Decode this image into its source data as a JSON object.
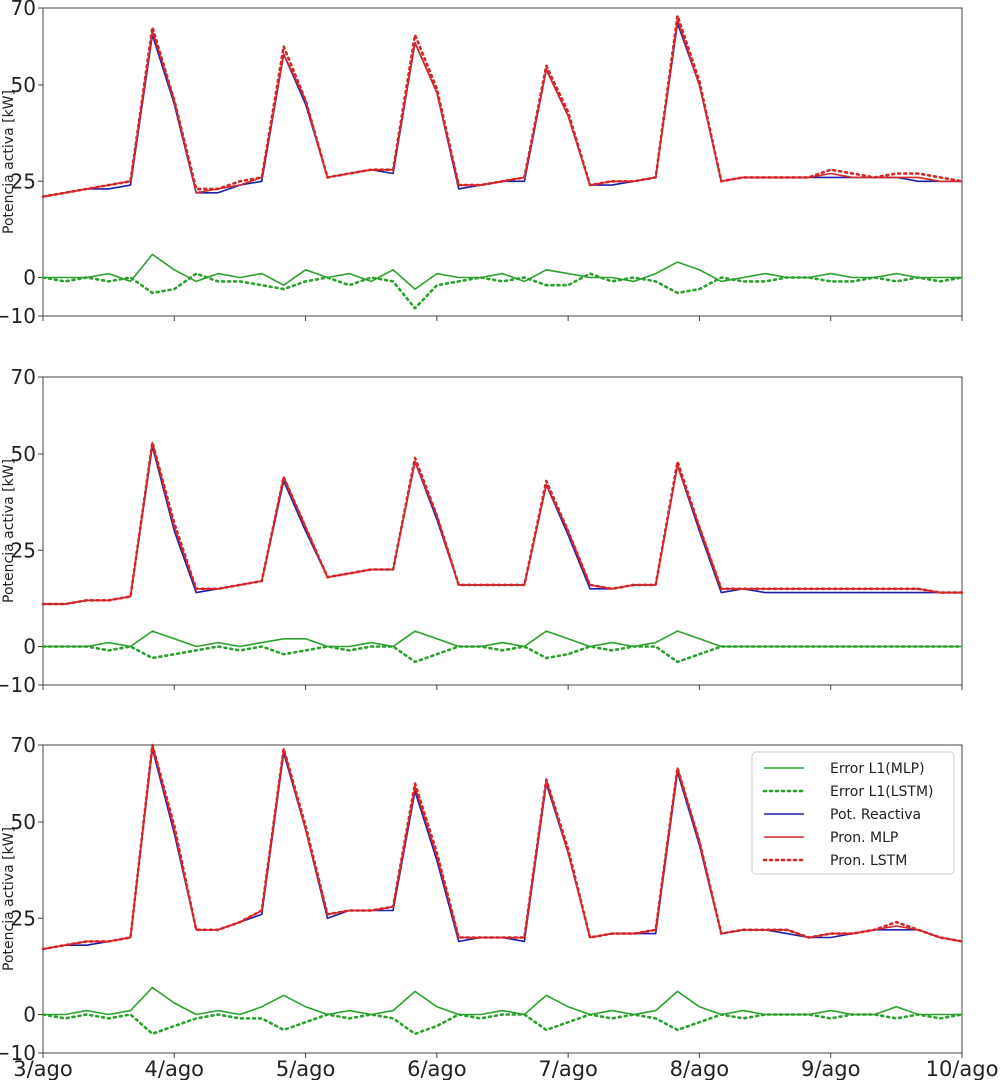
{
  "chart_data": [
    {
      "type": "line",
      "ylabel": "Potencia activa [kW]",
      "ylim": [
        -10,
        70
      ],
      "yticks": [
        -10,
        0,
        25,
        50,
        70
      ],
      "x_start": "3/ago",
      "x_end": "10/ago",
      "series": [
        {
          "name": "Pot. Reactiva",
          "color": "#1f1fa8",
          "style": "solid",
          "values": [
            21,
            22,
            23,
            23,
            24,
            63,
            45,
            22,
            22,
            24,
            25,
            58,
            45,
            26,
            27,
            28,
            27,
            61,
            48,
            23,
            24,
            25,
            25,
            54,
            42,
            24,
            24,
            25,
            26,
            66,
            50,
            25,
            26,
            26,
            26,
            26,
            26,
            26,
            26,
            26,
            25,
            25,
            25
          ]
        },
        {
          "name": "Pron. MLP",
          "color": "#d62728",
          "style": "solid",
          "values": [
            21,
            22,
            23,
            24,
            25,
            64,
            46,
            22,
            23,
            24,
            26,
            58,
            46,
            26,
            27,
            28,
            28,
            61,
            48,
            24,
            24,
            25,
            26,
            54,
            42,
            24,
            25,
            25,
            26,
            67,
            50,
            25,
            26,
            26,
            26,
            26,
            27,
            26,
            26,
            26,
            26,
            25,
            25
          ]
        },
        {
          "name": "Pron. LSTM",
          "color": "#d62728",
          "style": "dotted",
          "values": [
            21,
            22,
            23,
            24,
            25,
            65,
            46,
            23,
            23,
            25,
            26,
            60,
            46,
            26,
            27,
            28,
            28,
            63,
            49,
            24,
            24,
            25,
            26,
            55,
            43,
            24,
            25,
            25,
            26,
            68,
            51,
            25,
            26,
            26,
            26,
            26,
            28,
            27,
            26,
            27,
            27,
            26,
            25
          ]
        },
        {
          "name": "Error L1(MLP)",
          "color": "#2ca02c",
          "style": "solid",
          "values": [
            0,
            0,
            0,
            1,
            -1,
            6,
            2,
            -1,
            1,
            0,
            1,
            -2,
            2,
            0,
            1,
            -1,
            2,
            -3,
            1,
            0,
            0,
            1,
            -1,
            2,
            1,
            0,
            0,
            -1,
            1,
            4,
            2,
            -1,
            0,
            1,
            0,
            0,
            1,
            0,
            0,
            1,
            0,
            0,
            0
          ]
        },
        {
          "name": "Error L1(LSTM)",
          "color": "#2ca02c",
          "style": "dotted",
          "values": [
            0,
            -1,
            0,
            -1,
            0,
            -4,
            -3,
            1,
            -1,
            -1,
            -2,
            -3,
            -1,
            0,
            -2,
            0,
            -1,
            -8,
            -2,
            -1,
            0,
            -1,
            0,
            -2,
            -2,
            1,
            -1,
            0,
            -1,
            -4,
            -3,
            0,
            -1,
            -1,
            0,
            0,
            -1,
            -1,
            0,
            -1,
            0,
            -1,
            0
          ]
        }
      ]
    },
    {
      "type": "line",
      "ylabel": "Potencia activa [kW]",
      "ylim": [
        -10,
        70
      ],
      "yticks": [
        -10,
        0,
        25,
        50,
        70
      ],
      "x_start": "3/ago",
      "x_end": "10/ago",
      "series": [
        {
          "name": "Pot. Reactiva",
          "color": "#1f1fa8",
          "style": "solid",
          "values": [
            11,
            11,
            12,
            12,
            13,
            52,
            30,
            14,
            15,
            16,
            17,
            43,
            30,
            18,
            19,
            20,
            20,
            48,
            33,
            16,
            16,
            16,
            16,
            42,
            29,
            15,
            15,
            16,
            16,
            47,
            30,
            14,
            15,
            14,
            14,
            14,
            14,
            14,
            14,
            14,
            14,
            14,
            14
          ]
        },
        {
          "name": "Pron. MLP",
          "color": "#d62728",
          "style": "solid",
          "values": [
            11,
            11,
            12,
            12,
            13,
            53,
            31,
            15,
            15,
            16,
            17,
            44,
            31,
            18,
            19,
            20,
            20,
            48,
            34,
            16,
            16,
            16,
            16,
            42,
            30,
            16,
            15,
            16,
            16,
            47,
            31,
            15,
            15,
            15,
            15,
            15,
            15,
            15,
            15,
            15,
            15,
            14,
            14
          ]
        },
        {
          "name": "Pron. LSTM",
          "color": "#d62728",
          "style": "dotted",
          "values": [
            11,
            11,
            12,
            12,
            13,
            53,
            32,
            15,
            15,
            16,
            17,
            44,
            31,
            18,
            19,
            20,
            20,
            49,
            34,
            16,
            16,
            16,
            16,
            43,
            30,
            16,
            15,
            16,
            16,
            48,
            31,
            15,
            15,
            15,
            15,
            15,
            15,
            15,
            15,
            15,
            15,
            14,
            14
          ]
        },
        {
          "name": "Error L1(MLP)",
          "color": "#2ca02c",
          "style": "solid",
          "values": [
            0,
            0,
            0,
            1,
            0,
            4,
            2,
            0,
            1,
            0,
            1,
            2,
            2,
            0,
            0,
            1,
            0,
            4,
            2,
            0,
            0,
            1,
            0,
            4,
            2,
            0,
            1,
            0,
            1,
            4,
            2,
            0,
            0,
            0,
            0,
            0,
            0,
            0,
            0,
            0,
            0,
            0,
            0
          ]
        },
        {
          "name": "Error L1(LSTM)",
          "color": "#2ca02c",
          "style": "dotted",
          "values": [
            0,
            0,
            0,
            -1,
            0,
            -3,
            -2,
            -1,
            0,
            -1,
            0,
            -2,
            -1,
            0,
            -1,
            0,
            0,
            -4,
            -2,
            0,
            0,
            -1,
            0,
            -3,
            -2,
            0,
            -1,
            0,
            0,
            -4,
            -2,
            0,
            0,
            0,
            0,
            0,
            0,
            0,
            0,
            0,
            0,
            0,
            0
          ]
        }
      ]
    },
    {
      "type": "line",
      "ylabel": "Potencia activa [kW]",
      "ylim": [
        -10,
        70
      ],
      "yticks": [
        -10,
        0,
        25,
        50,
        70
      ],
      "x_start": "3/ago",
      "x_end": "10/ago",
      "xticks": [
        "3/ago",
        "4/ago",
        "5/ago",
        "6/ago",
        "7/ago",
        "8/ago",
        "9/ago",
        "10/ago"
      ],
      "legend": {
        "position": "top-right",
        "entries": [
          "Error L1(MLP)",
          "Error L1(LSTM)",
          "Pot. Reactiva",
          "Pron. MLP",
          "Pron. LSTM"
        ]
      },
      "series": [
        {
          "name": "Pot. Reactiva",
          "color": "#1f1fa8",
          "style": "solid",
          "values": [
            17,
            18,
            18,
            19,
            20,
            69,
            47,
            22,
            22,
            24,
            26,
            68,
            48,
            25,
            27,
            27,
            27,
            58,
            40,
            19,
            20,
            20,
            19,
            60,
            42,
            20,
            21,
            21,
            21,
            63,
            44,
            21,
            22,
            22,
            21,
            20,
            20,
            21,
            22,
            22,
            22,
            20,
            19
          ]
        },
        {
          "name": "Pron. MLP",
          "color": "#d62728",
          "style": "solid",
          "values": [
            17,
            18,
            19,
            19,
            20,
            70,
            48,
            22,
            22,
            24,
            27,
            69,
            48,
            26,
            27,
            27,
            28,
            59,
            41,
            20,
            20,
            20,
            20,
            61,
            42,
            20,
            21,
            21,
            22,
            64,
            45,
            21,
            22,
            22,
            22,
            20,
            21,
            21,
            22,
            23,
            22,
            20,
            19
          ]
        },
        {
          "name": "Pron. LSTM",
          "color": "#d62728",
          "style": "dotted",
          "values": [
            17,
            18,
            19,
            19,
            20,
            70,
            49,
            22,
            22,
            24,
            27,
            69,
            49,
            26,
            27,
            27,
            28,
            60,
            42,
            20,
            20,
            20,
            20,
            61,
            43,
            20,
            21,
            21,
            22,
            64,
            45,
            21,
            22,
            22,
            22,
            20,
            21,
            21,
            22,
            24,
            22,
            20,
            19
          ]
        },
        {
          "name": "Error L1(MLP)",
          "color": "#2ca02c",
          "style": "solid",
          "values": [
            0,
            0,
            1,
            0,
            1,
            7,
            3,
            0,
            1,
            0,
            2,
            5,
            2,
            0,
            1,
            0,
            1,
            6,
            2,
            0,
            0,
            1,
            0,
            5,
            2,
            0,
            1,
            0,
            1,
            6,
            2,
            0,
            1,
            0,
            0,
            0,
            1,
            0,
            0,
            2,
            0,
            0,
            0
          ]
        },
        {
          "name": "Error L1(LSTM)",
          "color": "#2ca02c",
          "style": "dotted",
          "values": [
            0,
            -1,
            0,
            -1,
            0,
            -5,
            -3,
            -1,
            0,
            -1,
            -1,
            -4,
            -2,
            0,
            -1,
            0,
            -1,
            -5,
            -3,
            0,
            -1,
            0,
            0,
            -4,
            -2,
            0,
            -1,
            0,
            -1,
            -4,
            -2,
            0,
            -1,
            0,
            0,
            0,
            -1,
            0,
            0,
            -1,
            0,
            -1,
            0
          ]
        }
      ]
    }
  ]
}
